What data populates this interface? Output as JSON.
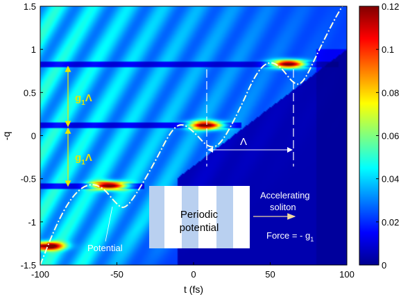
{
  "chart_data": {
    "type": "heatmap",
    "xlabel": "t (fs)",
    "ylabel": "-q",
    "xlim": [
      -100,
      100
    ],
    "ylim": [
      -1.5,
      1.5
    ],
    "x_ticks": [
      "-100",
      "-50",
      "0",
      "50",
      "100"
    ],
    "y_ticks": [
      "1.5",
      "1",
      "0.5",
      "0",
      "-0.5",
      "-1",
      "-1.5"
    ],
    "colorbar": {
      "range": [
        0,
        0.12
      ],
      "ticks": [
        "0.12",
        "0.1",
        "0.08",
        "0.06",
        "0.04",
        "0.02",
        "0"
      ]
    },
    "grid": false,
    "soliton_peaks": [
      {
        "t": -97,
        "q": -1.28,
        "value": 0.11
      },
      {
        "t": -55,
        "q": -0.58,
        "value": 0.12
      },
      {
        "t": 8,
        "q": 0.12,
        "value": 0.12
      },
      {
        "t": 62,
        "q": 0.83,
        "value": 0.12
      }
    ],
    "potential_curve_points": [
      {
        "t": -100,
        "q": -1.5
      },
      {
        "t": -90,
        "q": -1.05
      },
      {
        "t": -80,
        "q": -0.72
      },
      {
        "t": -70,
        "q": -0.56
      },
      {
        "t": -60,
        "q": -0.58
      },
      {
        "t": -50,
        "q": -0.8
      },
      {
        "t": -45,
        "q": -0.85
      },
      {
        "t": -38,
        "q": -0.7
      },
      {
        "t": -25,
        "q": -0.3
      },
      {
        "t": -15,
        "q": 0.05
      },
      {
        "t": -8,
        "q": 0.15
      },
      {
        "t": 0,
        "q": 0.05
      },
      {
        "t": 10,
        "q": -0.15
      },
      {
        "t": 18,
        "q": -0.1
      },
      {
        "t": 30,
        "q": 0.3
      },
      {
        "t": 40,
        "q": 0.7
      },
      {
        "t": 48,
        "q": 0.86
      },
      {
        "t": 56,
        "q": 0.82
      },
      {
        "t": 66,
        "q": 0.58
      },
      {
        "t": 72,
        "q": 0.62
      },
      {
        "t": 82,
        "q": 1.0
      },
      {
        "t": 92,
        "q": 1.35
      },
      {
        "t": 97,
        "q": 1.5
      }
    ],
    "annotations": {
      "g1_upper": "g",
      "g1_upper_sub": "1",
      "g1_upper_suffix": "Λ",
      "g1_lower": "g",
      "g1_lower_sub": "1",
      "g1_lower_suffix": "Λ",
      "lambda": "Λ",
      "periodic_line1": "Periodic",
      "periodic_line2": "potential",
      "accelerating_line1": "Accelerating",
      "accelerating_line2": "soliton",
      "force": "Force  = - g",
      "force_sub": "1",
      "potential": "Potential"
    }
  }
}
